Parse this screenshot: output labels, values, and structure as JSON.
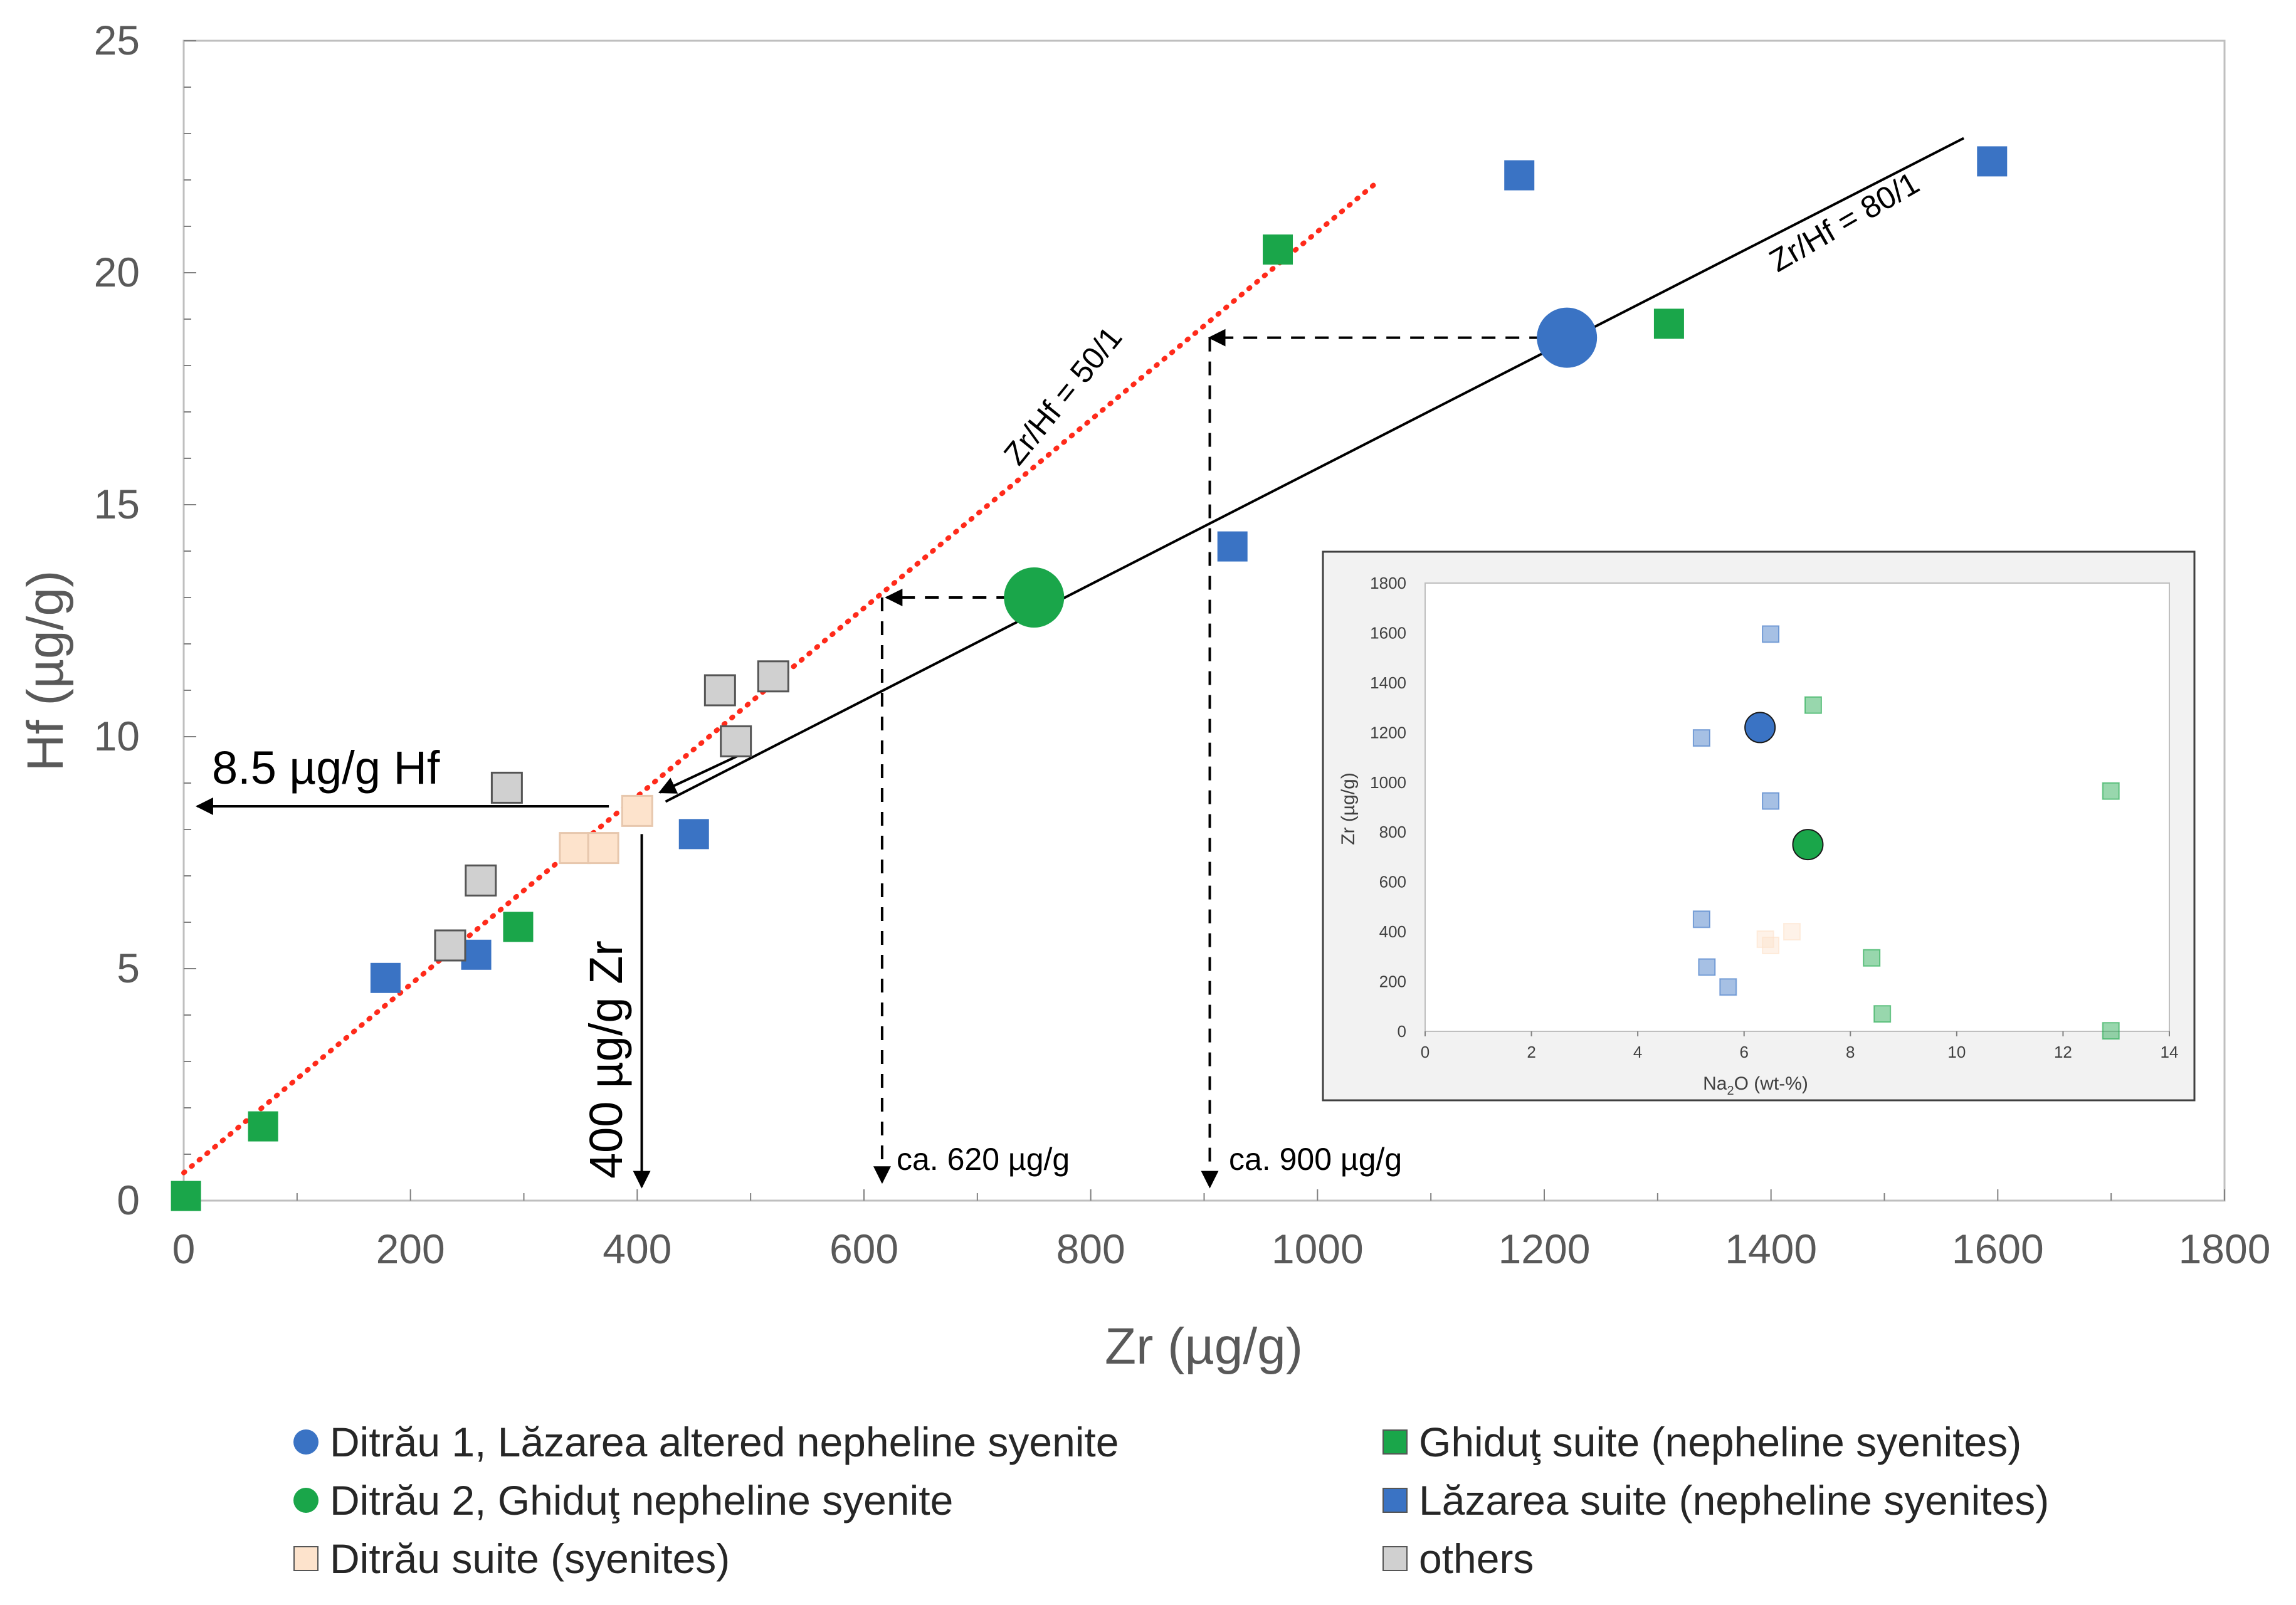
{
  "chart_data": {
    "type": "scatter",
    "xlabel": "Zr (µg/g)",
    "ylabel": "Hf (µg/g)",
    "xlim": [
      0,
      1800
    ],
    "ylim": [
      0,
      25
    ],
    "x_ticks": [
      "0",
      "200",
      "400",
      "600",
      "800",
      "1000",
      "1200",
      "1400",
      "1600",
      "1800"
    ],
    "y_ticks": [
      "0",
      "5",
      "10",
      "15",
      "20",
      "25"
    ],
    "series": [
      {
        "name": "Ditrău 1, Lăzarea altered nepheline syenite",
        "marker": "circle",
        "color": "#3a73c4",
        "points": [
          {
            "x": 1220,
            "y": 18.6
          }
        ]
      },
      {
        "name": "Ditrău 2, Ghiduţ nepheline syenite",
        "marker": "circle",
        "color": "#1aa64a",
        "points": [
          {
            "x": 750,
            "y": 13.0
          }
        ]
      },
      {
        "name": "Ditrău suite (syenites)",
        "marker": "square",
        "color": "#fde3cc",
        "points": [
          {
            "x": 345,
            "y": 7.6
          },
          {
            "x": 370,
            "y": 7.6
          },
          {
            "x": 400,
            "y": 8.4
          }
        ]
      },
      {
        "name": "Ghiduţ suite (nepheline syenites)",
        "marker": "square",
        "color": "#1aa64a",
        "points": [
          {
            "x": 2,
            "y": 0.1
          },
          {
            "x": 70,
            "y": 1.6
          },
          {
            "x": 295,
            "y": 5.9
          },
          {
            "x": 965,
            "y": 20.5
          },
          {
            "x": 1310,
            "y": 18.9
          }
        ]
      },
      {
        "name": "Lăzarea suite (nepheline syenites)",
        "marker": "square",
        "color": "#3a73c4",
        "points": [
          {
            "x": 178,
            "y": 4.8
          },
          {
            "x": 258,
            "y": 5.3
          },
          {
            "x": 450,
            "y": 7.9
          },
          {
            "x": 925,
            "y": 14.1
          },
          {
            "x": 1178,
            "y": 22.1
          },
          {
            "x": 1595,
            "y": 22.4
          }
        ]
      },
      {
        "name": "others",
        "marker": "square",
        "color": "#d0d0d0",
        "points": [
          {
            "x": 235,
            "y": 5.5
          },
          {
            "x": 262,
            "y": 6.9
          },
          {
            "x": 285,
            "y": 8.9
          },
          {
            "x": 473,
            "y": 11.0
          },
          {
            "x": 487,
            "y": 9.9
          },
          {
            "x": 520,
            "y": 11.3
          }
        ]
      }
    ],
    "reference_lines": [
      {
        "label": "Zr/Hf = 50/1",
        "style": "dotted",
        "color": "#ff2a1a",
        "x1": 0,
        "y1": 0.6,
        "x2": 1050,
        "y2": 21.9
      },
      {
        "label": "Zr/Hf = 80/1",
        "style": "solid",
        "color": "#000000",
        "x1": 425,
        "y1": 8.6,
        "x2": 1570,
        "y2": 22.9
      }
    ],
    "annotations": {
      "hf_label": "8.5 µg/g Hf",
      "zr_label": "400 µg/g Zr",
      "ca620": "ca. 620 µg/g",
      "ca900": "ca. 900 µg/g"
    },
    "inset": {
      "type": "scatter",
      "xlabel_main": "Na",
      "xlabel_sub": "2",
      "xlabel_rest": "O (wt-%)",
      "ylabel": "Zr (µg/g)",
      "xlim": [
        0,
        14
      ],
      "ylim": [
        0,
        1800
      ],
      "x_ticks": [
        "0",
        "2",
        "4",
        "6",
        "8",
        "10",
        "12",
        "14"
      ],
      "y_ticks": [
        "0",
        "200",
        "400",
        "600",
        "800",
        "1000",
        "1200",
        "1400",
        "1600",
        "1800"
      ],
      "points": [
        {
          "series": "Lăzarea suite (nepheline syenites)",
          "x": 6.5,
          "y": 1595
        },
        {
          "series": "Ghiduţ suite (nepheline syenites)",
          "x": 7.3,
          "y": 1310
        },
        {
          "series": "Lăzarea suite (nepheline syenites)",
          "x": 5.2,
          "y": 1178
        },
        {
          "series": "Lăzarea suite (nepheline syenites)",
          "x": 6.5,
          "y": 925
        },
        {
          "series": "Ghiduţ suite (nepheline syenites)",
          "x": 12.9,
          "y": 965
        },
        {
          "series": "Lăzarea suite (nepheline syenites)",
          "x": 5.2,
          "y": 450
        },
        {
          "series": "Ditrău suite (syenites)",
          "x": 6.9,
          "y": 400
        },
        {
          "series": "Ditrău suite (syenites)",
          "x": 6.4,
          "y": 370
        },
        {
          "series": "Ditrău suite (syenites)",
          "x": 6.5,
          "y": 345
        },
        {
          "series": "Ghiduţ suite (nepheline syenites)",
          "x": 8.4,
          "y": 295
        },
        {
          "series": "Lăzarea suite (nepheline syenites)",
          "x": 5.3,
          "y": 258
        },
        {
          "series": "Lăzarea suite (nepheline syenites)",
          "x": 5.7,
          "y": 178
        },
        {
          "series": "Ghiduţ suite (nepheline syenites)",
          "x": 8.6,
          "y": 70
        },
        {
          "series": "Ghiduţ suite (nepheline syenites)",
          "x": 12.9,
          "y": 2
        },
        {
          "series": "Ditrău 1, Lăzarea altered nepheline syenite",
          "x": 6.3,
          "y": 1220
        },
        {
          "series": "Ditrău 2, Ghiduţ nepheline syenite",
          "x": 7.2,
          "y": 750
        }
      ]
    }
  },
  "legend": {
    "items": [
      {
        "label": "Ditrău 1, Lăzarea altered nepheline syenite",
        "color": "#3a73c4",
        "marker": "circle"
      },
      {
        "label": "Ditrău 2, Ghiduţ nepheline syenite",
        "color": "#1aa64a",
        "marker": "circle"
      },
      {
        "label": "Ditrău suite (syenites)",
        "color": "#fde3cc",
        "marker": "square"
      },
      {
        "label": "Ghiduţ suite (nepheline syenites)",
        "color": "#1aa64a",
        "marker": "square"
      },
      {
        "label": "Lăzarea suite (nepheline syenites)",
        "color": "#3a73c4",
        "marker": "square"
      },
      {
        "label": "others",
        "color": "#d0d0d0",
        "marker": "square"
      }
    ]
  }
}
